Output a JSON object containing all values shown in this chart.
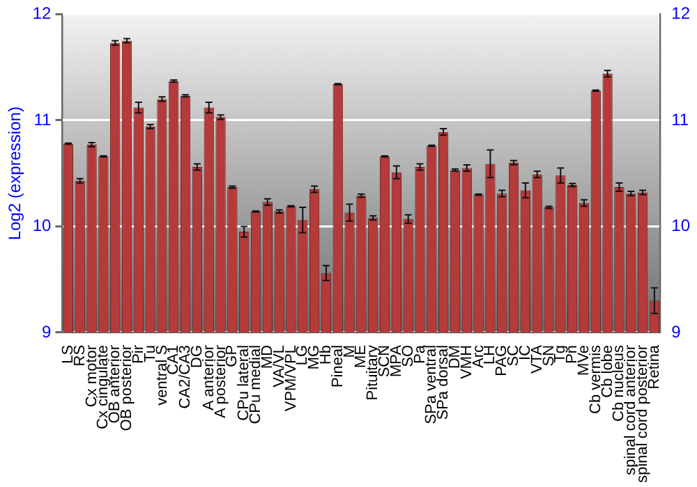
{
  "chart_data": {
    "type": "bar",
    "ylabel": "Log2 (expression)",
    "categories": [
      "LS",
      "RS",
      "Cx motor",
      "Cx cingulate",
      "OB anterior",
      "OB posterior",
      "Pir",
      "Tu",
      "ventral S",
      "CA1",
      "CA2/CA3",
      "DG",
      "A anterior",
      "A posterior",
      "GP",
      "CPu lateral",
      "CPu medial",
      "MD",
      "VA/VL",
      "VPM/VPL",
      "LG",
      "MG",
      "Hb",
      "Pineal",
      "M",
      "ME",
      "Pituitary",
      "SCN",
      "MPA",
      "SO",
      "Pa",
      "SPa ventral",
      "SPa dorsal",
      "DM",
      "VMH",
      "Arc",
      "LH",
      "PAG",
      "SC",
      "IC",
      "VTA",
      "SN",
      "Tg",
      "Pn",
      "MVe",
      "Cb vermis",
      "Cb lobe",
      "Cb nucleus",
      "spinal cord anterior",
      "spinal cord posterior",
      "Retina"
    ],
    "values": [
      10.78,
      10.43,
      10.77,
      10.66,
      11.73,
      11.75,
      11.12,
      10.94,
      11.2,
      11.37,
      11.23,
      10.56,
      11.12,
      11.03,
      10.37,
      9.95,
      10.14,
      10.23,
      10.14,
      10.19,
      10.06,
      10.35,
      9.56,
      11.34,
      10.13,
      10.29,
      10.08,
      10.66,
      10.51,
      10.07,
      10.56,
      10.76,
      10.89,
      10.53,
      10.55,
      10.3,
      10.59,
      10.31,
      10.6,
      10.34,
      10.49,
      10.18,
      10.48,
      10.39,
      10.22,
      11.28,
      11.44,
      10.37,
      10.31,
      10.32,
      9.3
    ],
    "errors": [
      0.005,
      0.02,
      0.02,
      0.005,
      0.02,
      0.02,
      0.05,
      0.02,
      0.02,
      0.01,
      0.01,
      0.03,
      0.05,
      0.02,
      0.01,
      0.05,
      0.005,
      0.03,
      0.015,
      0.005,
      0.12,
      0.03,
      0.07,
      0.005,
      0.08,
      0.015,
      0.02,
      0.005,
      0.06,
      0.04,
      0.03,
      0.005,
      0.03,
      0.01,
      0.03,
      0.005,
      0.13,
      0.03,
      0.02,
      0.07,
      0.03,
      0.01,
      0.07,
      0.015,
      0.03,
      0.005,
      0.03,
      0.04,
      0.02,
      0.02,
      0.12
    ],
    "color": "#b53a3a",
    "ylim": [
      9,
      12
    ],
    "yticks": [
      9,
      10,
      11,
      12
    ],
    "y2lim": [
      9,
      12
    ],
    "y2ticks": [
      9,
      10,
      11,
      12
    ],
    "grid": "y",
    "legend": false
  }
}
